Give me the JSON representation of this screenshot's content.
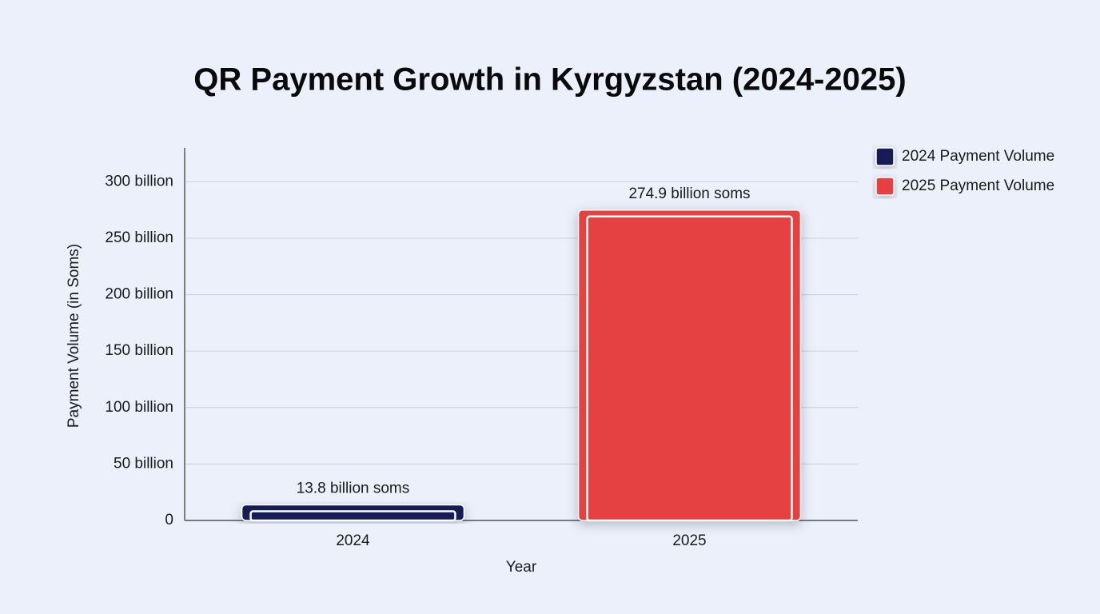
{
  "chart_data": {
    "type": "bar",
    "title": "QR Payment Growth in Kyrgyzstan (2024-2025)",
    "x_label": "Year",
    "y_label": "Payment Volume (in Soms)",
    "categories": [
      "2024",
      "2025"
    ],
    "series": [
      {
        "name": "2024 Payment Volume",
        "color": "#151a55",
        "values": [
          13800000000,
          null
        ],
        "value_labels": [
          "13.8 billion soms",
          null
        ]
      },
      {
        "name": "2025 Payment Volume",
        "color": "#e54042",
        "values": [
          null,
          274900000000
        ],
        "value_labels": [
          null,
          "274.9 billion soms"
        ]
      }
    ],
    "ylim": [
      0,
      330000000000
    ],
    "yticks": [
      0,
      {
        "value": 50000000000,
        "label": "50 billion"
      },
      {
        "value": 100000000000,
        "label": "100 billion"
      },
      {
        "value": 150000000000,
        "label": "150 billion"
      },
      {
        "value": 200000000000,
        "label": "200 billion"
      },
      {
        "value": 250000000000,
        "label": "250 billion"
      },
      {
        "value": 300000000000,
        "label": "300 billion"
      }
    ],
    "grid": true,
    "legend": "top-right"
  }
}
